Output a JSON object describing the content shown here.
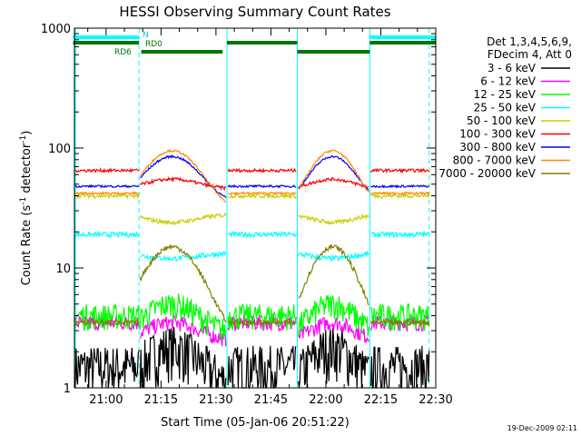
{
  "chart_data": {
    "type": "line",
    "title": "HESSI Observing Summary Count Rates",
    "xlabel": "Start Time (05-Jan-06 20:51:22)",
    "ylabel": "Count Rate (s⁻¹ detector⁻¹)",
    "ylabel_main": "Count Rate (s",
    "ylabel_sup1": "-1",
    "ylabel_mid": " detector",
    "ylabel_sup2": "-1",
    "ylabel_end": ")",
    "yscale": "log",
    "ylim": [
      1,
      1000
    ],
    "xlim_minutes": [
      20.85,
      22.5
    ],
    "xlim_label": [
      "20:51",
      "22:30"
    ],
    "x_ticks": [
      {
        "label": "21:00",
        "t": 21.0
      },
      {
        "label": "21:15",
        "t": 21.25
      },
      {
        "label": "21:30",
        "t": 21.5
      },
      {
        "label": "21:45",
        "t": 21.75
      },
      {
        "label": "22:00",
        "t": 22.0
      },
      {
        "label": "22:15",
        "t": 22.25
      },
      {
        "label": "22:30",
        "t": 22.5
      }
    ],
    "y_ticks": [
      {
        "label": "1",
        "v": 1
      },
      {
        "label": "10",
        "v": 10
      },
      {
        "label": "100",
        "v": 100
      },
      {
        "label": "1000",
        "v": 1000
      }
    ],
    "timestamp": "19-Dec-2009 02:11",
    "legend_header": [
      "Det 1,3,4,5,6,9,",
      "FDecim 4, Att 0"
    ],
    "legend_placement": "right",
    "series": [
      {
        "name": "3 - 6 keV",
        "color": "#000000",
        "profile": {
          "base": 1.5,
          "peak": 2.2,
          "noise": 0.5
        }
      },
      {
        "name": "6 - 12 keV",
        "color": "#ff00ff",
        "profile": {
          "base": 3.5,
          "peak": 3.5,
          "noise": 0.15
        }
      },
      {
        "name": "12 - 25 keV",
        "color": "#00ff00",
        "profile": {
          "base": 4.0,
          "peak": 5.0,
          "noise": 0.25
        }
      },
      {
        "name": "25 - 50 keV",
        "color": "#00ffff",
        "profile": {
          "base": 19,
          "peak": 12,
          "noise": 0.05
        }
      },
      {
        "name": "50 - 100 keV",
        "color": "#cccc00",
        "profile": {
          "base": 40,
          "peak": 24,
          "noise": 0.04
        }
      },
      {
        "name": "100 - 300 keV",
        "color": "#ff0000",
        "profile": {
          "base": 65,
          "peak": 55,
          "noise": 0.03
        }
      },
      {
        "name": "300 - 800 keV",
        "color": "#0000ff",
        "profile": {
          "base": 48,
          "peak": 85,
          "noise": 0.02
        }
      },
      {
        "name": "800 - 7000 keV",
        "color": "#ff8800",
        "profile": {
          "base": 42,
          "peak": 95,
          "noise": 0.02
        }
      },
      {
        "name": "7000 - 20000 keV",
        "color": "#808000",
        "profile": {
          "base": 3.5,
          "peak": 15,
          "noise": 0.05
        }
      }
    ],
    "flags": [
      {
        "name": "N",
        "color": "#00ffff",
        "segments": [
          [
            20.85,
            21.15
          ],
          [
            22.2,
            22.5
          ]
        ]
      },
      {
        "name": "RD0",
        "color": "#007700",
        "segments": [
          [
            20.85,
            21.15
          ],
          [
            21.55,
            21.87
          ],
          [
            22.2,
            22.5
          ]
        ]
      },
      {
        "name": "RD6",
        "color": "#007700",
        "segments": [
          [
            21.16,
            21.53
          ],
          [
            21.87,
            22.2
          ]
        ]
      }
    ],
    "flag_labels": {
      "n": "N",
      "rd0": "RD0",
      "rd6": "RD6"
    },
    "annotation_lines": [
      {
        "t": 21.15,
        "style": "dashed"
      },
      {
        "t": 21.55,
        "style": "solid"
      },
      {
        "t": 21.87,
        "style": "solid"
      },
      {
        "t": 22.2,
        "style": "solid"
      },
      {
        "t": 22.47,
        "style": "dashed"
      }
    ]
  }
}
